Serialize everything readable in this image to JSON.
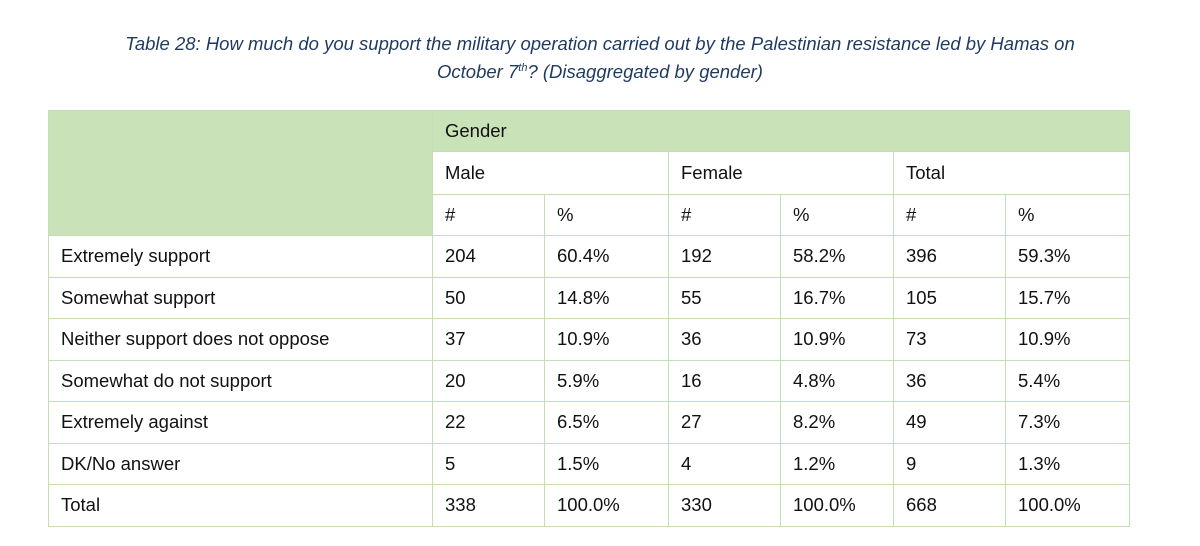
{
  "caption": {
    "line1": "Table 28: How much do you support the military operation carried out by the Palestinian resistance led by Hamas on",
    "line2_pre": "October 7",
    "line2_sup": "th",
    "line2_post": "? (Disaggregated by gender)"
  },
  "table": {
    "group_header": "Gender",
    "groups": [
      "Male",
      "Female",
      "Total"
    ],
    "subheaders": [
      "#",
      "%",
      "#",
      "%",
      "#",
      "%"
    ],
    "rows": [
      {
        "label": "Extremely support",
        "values": [
          "204",
          "60.4%",
          "192",
          "58.2%",
          "396",
          "59.3%"
        ]
      },
      {
        "label": "Somewhat support",
        "values": [
          "50",
          "14.8%",
          "55",
          "16.7%",
          "105",
          "15.7%"
        ]
      },
      {
        "label": "Neither support does not oppose",
        "values": [
          "37",
          "10.9%",
          "36",
          "10.9%",
          "73",
          "10.9%"
        ]
      },
      {
        "label": "Somewhat do not support",
        "values": [
          "20",
          "5.9%",
          "16",
          "4.8%",
          "36",
          "5.4%"
        ]
      },
      {
        "label": "Extremely against",
        "values": [
          "22",
          "6.5%",
          "27",
          "8.2%",
          "49",
          "7.3%"
        ]
      },
      {
        "label": "DK/No answer",
        "values": [
          "5",
          "1.5%",
          "4",
          "1.2%",
          "9",
          "1.3%"
        ]
      },
      {
        "label": "Total",
        "values": [
          "338",
          "100.0%",
          "330",
          "100.0%",
          "668",
          "100.0%"
        ]
      }
    ]
  },
  "colors": {
    "header_fill": "#c9e2b8",
    "border": "#c5dfb5",
    "caption_text": "#1f3a5f"
  }
}
